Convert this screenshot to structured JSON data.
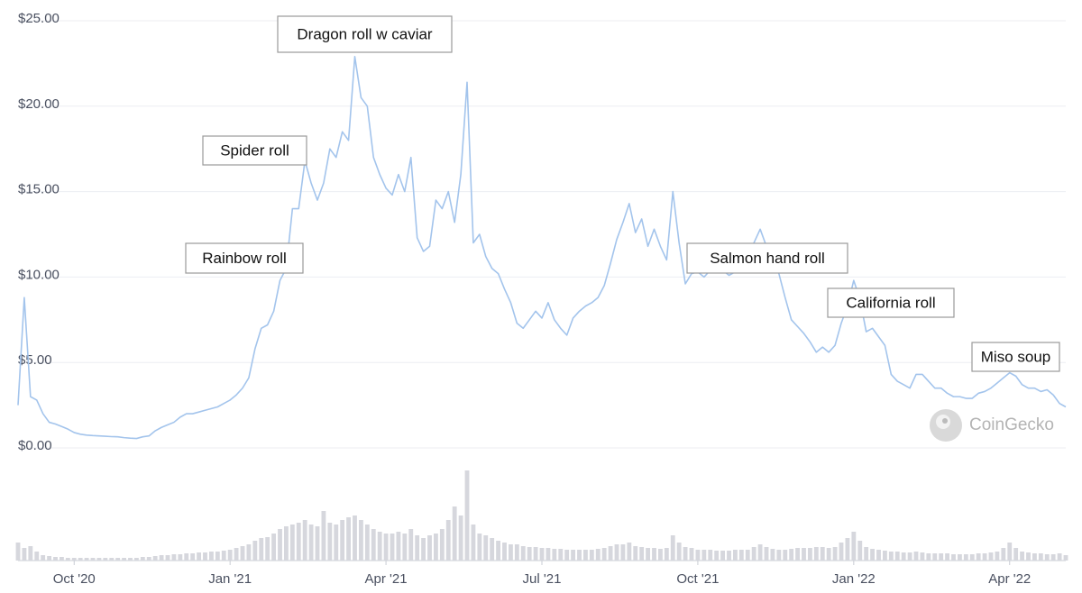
{
  "chart_data": {
    "type": "line",
    "x": [
      2020.66,
      2020.67,
      2020.68,
      2020.69,
      2020.7,
      2020.71,
      2020.72,
      2020.73,
      2020.74,
      2020.75,
      2020.76,
      2020.77,
      2020.78,
      2020.79,
      2020.8,
      2020.81,
      2020.82,
      2020.83,
      2020.84,
      2020.85,
      2020.86,
      2020.87,
      2020.88,
      2020.89,
      2020.9,
      2020.91,
      2020.92,
      2020.93,
      2020.94,
      2020.95,
      2020.96,
      2020.97,
      2020.98,
      2020.99,
      2021.0,
      2021.01,
      2021.02,
      2021.03,
      2021.04,
      2021.05,
      2021.06,
      2021.07,
      2021.08,
      2021.09,
      2021.1,
      2021.11,
      2021.12,
      2021.13,
      2021.14,
      2021.15,
      2021.16,
      2021.17,
      2021.18,
      2021.19,
      2021.2,
      2021.21,
      2021.22,
      2021.23,
      2021.24,
      2021.25,
      2021.26,
      2021.27,
      2021.28,
      2021.29,
      2021.3,
      2021.31,
      2021.32,
      2021.33,
      2021.34,
      2021.35,
      2021.36,
      2021.37,
      2021.38,
      2021.39,
      2021.4,
      2021.41,
      2021.42,
      2021.43,
      2021.44,
      2021.45,
      2021.46,
      2021.47,
      2021.48,
      2021.49,
      2021.5,
      2021.51,
      2021.52,
      2021.53,
      2021.54,
      2021.55,
      2021.56,
      2021.57,
      2021.58,
      2021.59,
      2021.6,
      2021.61,
      2021.62,
      2021.63,
      2021.64,
      2021.65,
      2021.66,
      2021.67,
      2021.68,
      2021.69,
      2021.7,
      2021.71,
      2021.72,
      2021.73,
      2021.74,
      2021.75,
      2021.76,
      2021.77,
      2021.78,
      2021.79,
      2021.8,
      2021.81,
      2021.82,
      2021.83,
      2021.84,
      2021.85,
      2021.86,
      2021.87,
      2021.88,
      2021.89,
      2021.9,
      2021.91,
      2021.92,
      2021.93,
      2021.94,
      2021.95,
      2021.96,
      2021.97,
      2021.98,
      2021.99,
      2022.0,
      2022.01,
      2022.02,
      2022.03,
      2022.04,
      2022.05,
      2022.06,
      2022.07,
      2022.08,
      2022.09,
      2022.1,
      2022.11,
      2022.12,
      2022.13,
      2022.14,
      2022.15,
      2022.16,
      2022.17,
      2022.18,
      2022.19,
      2022.2,
      2022.21,
      2022.22,
      2022.23,
      2022.24,
      2022.25,
      2022.26,
      2022.27,
      2022.28,
      2022.29,
      2022.3,
      2022.31,
      2022.32,
      2022.33,
      2022.34
    ],
    "series": [
      {
        "color": "#a3c4ec",
        "values": [
          2.5,
          8.8,
          3.0,
          2.8,
          2.0,
          1.5,
          1.4,
          1.25,
          1.1,
          0.9,
          0.8,
          0.75,
          0.72,
          0.7,
          0.68,
          0.66,
          0.65,
          0.6,
          0.57,
          0.55,
          0.65,
          0.7,
          1.0,
          1.2,
          1.35,
          1.5,
          1.8,
          2.0,
          2.0,
          2.1,
          2.2,
          2.3,
          2.4,
          2.6,
          2.8,
          3.1,
          3.5,
          4.1,
          5.8,
          7.0,
          7.2,
          8.0,
          9.8,
          10.5,
          14.0,
          14.0,
          16.8,
          15.5,
          14.5,
          15.5,
          17.5,
          17.0,
          18.5,
          18.0,
          22.9,
          20.5,
          20.0,
          17.0,
          16.0,
          15.2,
          14.8,
          16.0,
          15.0,
          17.0,
          12.3,
          11.5,
          11.8,
          14.5,
          14.0,
          15.0,
          13.2,
          16.0,
          21.4,
          12.0,
          12.5,
          11.2,
          10.5,
          10.2,
          9.3,
          8.5,
          7.3,
          7.0,
          7.5,
          8.0,
          7.6,
          8.5,
          7.5,
          7.0,
          6.6,
          7.6,
          8.0,
          8.3,
          8.5,
          8.8,
          9.5,
          10.8,
          12.2,
          13.2,
          14.3,
          12.6,
          13.4,
          11.8,
          12.8,
          11.8,
          11.0,
          15.0,
          12.0,
          9.6,
          10.2,
          10.3,
          10.0,
          10.4,
          10.5,
          10.4,
          10.1,
          10.3,
          10.5,
          10.4,
          12.0,
          12.8,
          11.8,
          10.9,
          10.2,
          8.8,
          7.5,
          7.1,
          6.7,
          6.2,
          5.6,
          5.9,
          5.6,
          6.0,
          7.3,
          8.3,
          9.8,
          8.7,
          6.8,
          7.0,
          6.5,
          6.0,
          4.3,
          3.9,
          3.7,
          3.5,
          4.3,
          4.3,
          3.9,
          3.5,
          3.5,
          3.2,
          3.0,
          3.0,
          2.9,
          2.9,
          3.2,
          3.3,
          3.5,
          3.8,
          4.1,
          4.4,
          4.2,
          3.7,
          3.5,
          3.5,
          3.3,
          3.4,
          3.1,
          2.6,
          2.4
        ]
      },
      {
        "color": "#d6d7dd",
        "axis": "y2",
        "values": [
          20,
          14,
          16,
          10,
          6,
          5,
          4,
          4,
          3,
          3,
          3,
          3,
          3,
          3,
          3,
          3,
          3,
          3,
          3,
          3,
          4,
          4,
          5,
          6,
          6,
          7,
          7,
          8,
          8,
          9,
          9,
          10,
          10,
          11,
          12,
          14,
          16,
          18,
          22,
          25,
          26,
          30,
          35,
          38,
          40,
          42,
          45,
          40,
          38,
          55,
          42,
          40,
          45,
          48,
          50,
          45,
          40,
          35,
          32,
          30,
          30,
          32,
          30,
          35,
          28,
          25,
          28,
          30,
          35,
          45,
          60,
          50,
          100,
          40,
          30,
          28,
          25,
          22,
          20,
          18,
          18,
          16,
          15,
          15,
          14,
          14,
          13,
          13,
          12,
          12,
          12,
          12,
          12,
          13,
          14,
          16,
          18,
          18,
          20,
          16,
          15,
          14,
          14,
          13,
          14,
          28,
          20,
          15,
          14,
          12,
          12,
          12,
          11,
          11,
          11,
          12,
          12,
          12,
          15,
          18,
          15,
          13,
          12,
          12,
          13,
          14,
          14,
          14,
          15,
          15,
          14,
          15,
          20,
          25,
          32,
          22,
          15,
          13,
          12,
          11,
          10,
          10,
          9,
          9,
          10,
          9,
          8,
          8,
          8,
          8,
          7,
          7,
          7,
          7,
          8,
          8,
          9,
          10,
          14,
          20,
          14,
          10,
          9,
          8,
          8,
          7,
          7,
          8,
          6
        ]
      }
    ],
    "xlim": [
      2020.66,
      2022.34
    ],
    "xticks": [
      {
        "value": 2020.75,
        "label": "Oct '20"
      },
      {
        "value": 2021.0,
        "label": "Jan '21"
      },
      {
        "value": 2021.25,
        "label": "Apr '21"
      },
      {
        "value": 2021.5,
        "label": "Jul '21"
      },
      {
        "value": 2021.75,
        "label": "Oct '21"
      },
      {
        "value": 2022.0,
        "label": "Jan '22"
      },
      {
        "value": 2022.25,
        "label": "Apr '22"
      }
    ],
    "ylim": [
      0,
      25
    ],
    "yticks": [
      {
        "value": 0,
        "label": "$0.00"
      },
      {
        "value": 5,
        "label": "$5.00"
      },
      {
        "value": 10,
        "label": "$10.00"
      },
      {
        "value": 15,
        "label": "$15.00"
      },
      {
        "value": 20,
        "label": "$20.00"
      },
      {
        "value": 25,
        "label": "$25.00"
      }
    ],
    "y2lim": [
      0,
      100
    ],
    "grid": true,
    "annotations": [
      "Dragon roll w caviar",
      "Spider roll",
      "Rainbow roll",
      "Salmon hand roll",
      "California roll",
      "Miso soup"
    ],
    "watermark": "CoinGecko"
  }
}
